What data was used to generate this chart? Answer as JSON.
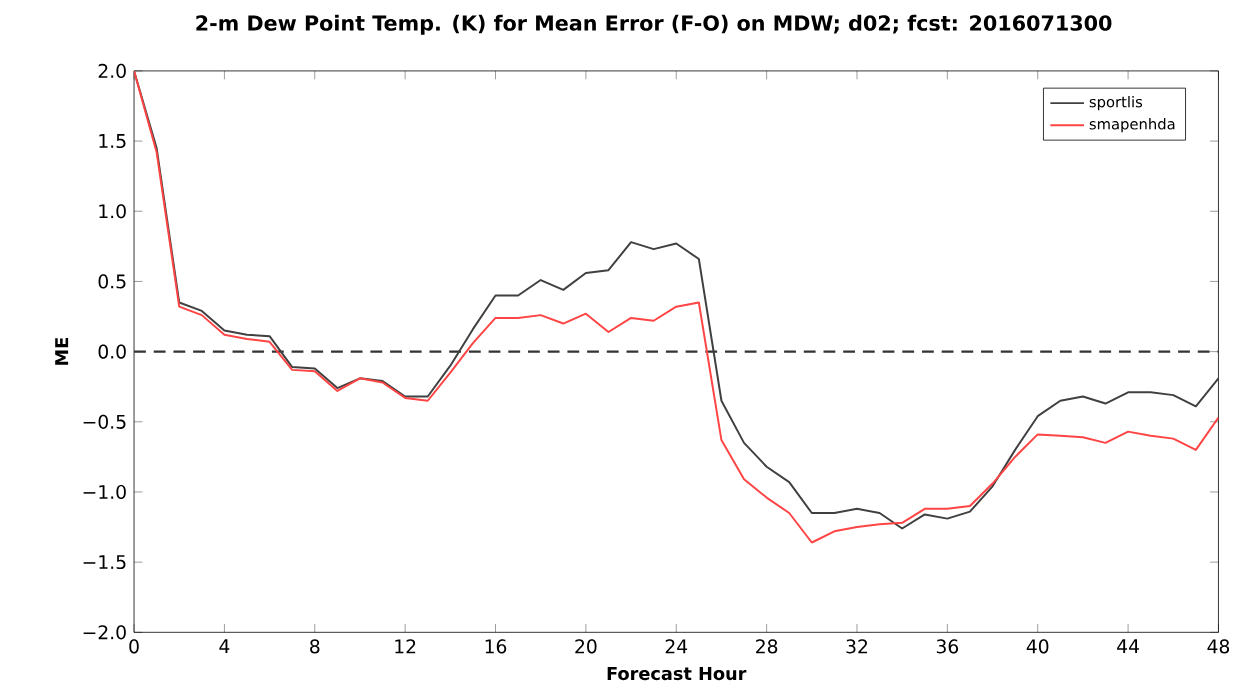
{
  "chart_data": {
    "type": "line",
    "title": "2-m Dew Point Temp. (K) for Mean Error (F-O) on MDW; d02; fcst: 2016071300",
    "xlabel": "Forecast Hour",
    "ylabel": "ME",
    "x": [
      0,
      1,
      2,
      3,
      4,
      5,
      6,
      7,
      8,
      9,
      10,
      11,
      12,
      13,
      14,
      15,
      16,
      17,
      18,
      19,
      20,
      21,
      22,
      23,
      24,
      25,
      26,
      27,
      28,
      29,
      30,
      31,
      32,
      33,
      34,
      35,
      36,
      37,
      38,
      39,
      40,
      41,
      42,
      43,
      44,
      45,
      46,
      47,
      48
    ],
    "series": [
      {
        "name": "sportlis",
        "color": "#404040",
        "values": [
          2.0,
          1.45,
          0.35,
          0.29,
          0.15,
          0.12,
          0.11,
          -0.11,
          -0.12,
          -0.26,
          -0.19,
          -0.21,
          -0.32,
          -0.32,
          -0.1,
          0.16,
          0.4,
          0.4,
          0.51,
          0.44,
          0.56,
          0.58,
          0.78,
          0.73,
          0.77,
          0.66,
          -0.35,
          -0.65,
          -0.82,
          -0.93,
          -1.15,
          -1.15,
          -1.12,
          -1.15,
          -1.26,
          -1.16,
          -1.19,
          -1.14,
          -0.96,
          -0.7,
          -0.46,
          -0.35,
          -0.32,
          -0.37,
          -0.29,
          -0.29,
          -0.31,
          -0.39,
          -0.19
        ]
      },
      {
        "name": "smapenhda",
        "color": "#ff4444",
        "values": [
          2.0,
          1.42,
          0.32,
          0.26,
          0.12,
          0.09,
          0.07,
          -0.13,
          -0.14,
          -0.28,
          -0.19,
          -0.22,
          -0.33,
          -0.35,
          -0.15,
          0.06,
          0.24,
          0.24,
          0.26,
          0.2,
          0.27,
          0.14,
          0.24,
          0.22,
          0.32,
          0.35,
          -0.63,
          -0.91,
          -1.04,
          -1.15,
          -1.36,
          -1.28,
          -1.25,
          -1.23,
          -1.22,
          -1.12,
          -1.12,
          -1.1,
          -0.94,
          -0.75,
          -0.59,
          -0.6,
          -0.61,
          -0.65,
          -0.57,
          -0.6,
          -0.62,
          -0.7,
          -0.47
        ]
      }
    ],
    "xlim": [
      0,
      48
    ],
    "xticks": [
      0,
      4,
      8,
      12,
      16,
      20,
      24,
      28,
      32,
      36,
      40,
      44,
      48
    ],
    "ylim": [
      -2,
      2
    ],
    "yticks": [
      {
        "value": -2,
        "label": "−2.0"
      },
      {
        "value": -1.5,
        "label": "−1.5"
      },
      {
        "value": -1,
        "label": "−1.0"
      },
      {
        "value": -0.5,
        "label": "−0.5"
      },
      {
        "value": 0,
        "label": "0.0"
      },
      {
        "value": 0.5,
        "label": "0.5"
      },
      {
        "value": 1,
        "label": "1.0"
      },
      {
        "value": 1.5,
        "label": "1.5"
      },
      {
        "value": 2,
        "label": "2.0"
      }
    ],
    "ref_lines": [
      {
        "axis": "y",
        "value": 0,
        "color": "#333333",
        "line_style": "dashed"
      }
    ],
    "legend": "top right",
    "grid": false,
    "marker": "none"
  }
}
